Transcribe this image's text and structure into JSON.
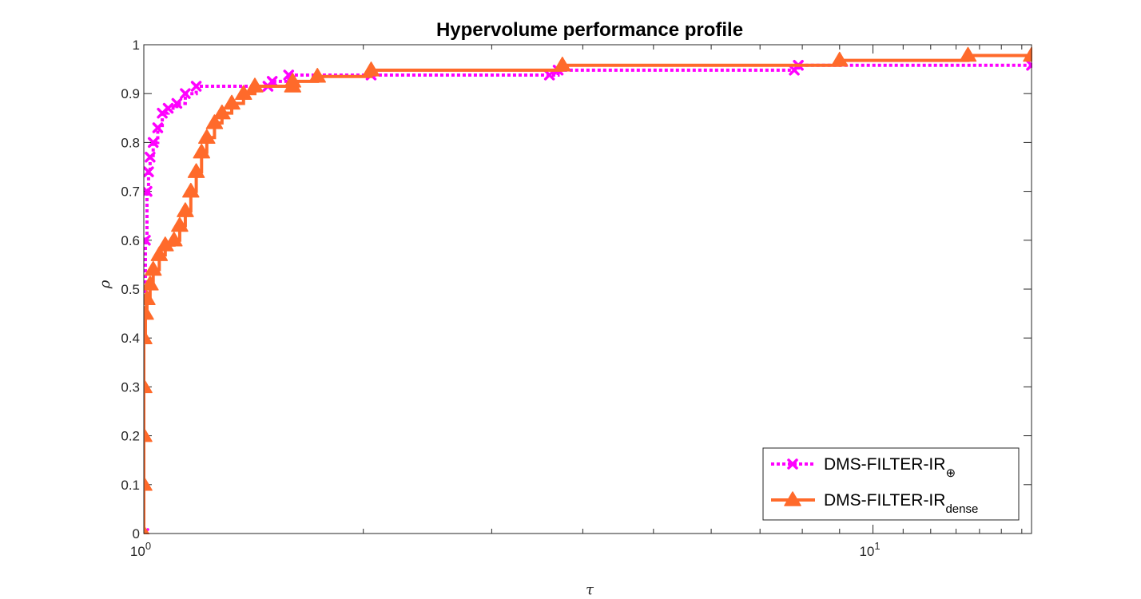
{
  "chart_data": {
    "type": "line",
    "title": "Hypervolume performance profile",
    "xlabel": "τ",
    "ylabel": "ρ",
    "xscale": "log",
    "xlim": [
      1,
      16.5
    ],
    "ylim": [
      0,
      1
    ],
    "xticks": [
      1,
      10
    ],
    "xtick_labels": [
      {
        "base": "10",
        "exp": "0"
      },
      {
        "base": "10",
        "exp": "1"
      }
    ],
    "yticks": [
      0,
      0.1,
      0.2,
      0.3,
      0.4,
      0.5,
      0.6,
      0.7,
      0.8,
      0.9,
      1
    ],
    "ytick_labels": [
      "0",
      "0.1",
      "0.2",
      "0.3",
      "0.4",
      "0.5",
      "0.6",
      "0.7",
      "0.8",
      "0.9",
      "1"
    ],
    "grid": false,
    "legend_position": "bottom-right",
    "series": [
      {
        "name_main": "DMS-FILTER-IR",
        "name_sub": "⊕",
        "color": "#ff00ff",
        "line_style": "dotted",
        "marker": "x",
        "points": [
          [
            1.0,
            0.0
          ],
          [
            1.0,
            0.5
          ],
          [
            1.005,
            0.6
          ],
          [
            1.01,
            0.7
          ],
          [
            1.015,
            0.74
          ],
          [
            1.02,
            0.77
          ],
          [
            1.03,
            0.8
          ],
          [
            1.045,
            0.83
          ],
          [
            1.06,
            0.86
          ],
          [
            1.08,
            0.87
          ],
          [
            1.11,
            0.88
          ],
          [
            1.14,
            0.9
          ],
          [
            1.18,
            0.915
          ],
          [
            1.48,
            0.915
          ],
          [
            1.5,
            0.925
          ],
          [
            1.58,
            0.938
          ],
          [
            2.05,
            0.938
          ],
          [
            3.6,
            0.938
          ],
          [
            3.7,
            0.948
          ],
          [
            7.8,
            0.948
          ],
          [
            7.9,
            0.958
          ],
          [
            16.5,
            0.958
          ]
        ]
      },
      {
        "name_main": "DMS-FILTER-IR",
        "name_sub": "dense",
        "color": "#ff6a2b",
        "line_style": "solid",
        "marker": "triangle",
        "points": [
          [
            1.0,
            0.0
          ],
          [
            1.0,
            0.1
          ],
          [
            1.0,
            0.2
          ],
          [
            1.0,
            0.3
          ],
          [
            1.0,
            0.4
          ],
          [
            1.005,
            0.45
          ],
          [
            1.01,
            0.48
          ],
          [
            1.02,
            0.51
          ],
          [
            1.03,
            0.54
          ],
          [
            1.05,
            0.57
          ],
          [
            1.07,
            0.59
          ],
          [
            1.1,
            0.6
          ],
          [
            1.12,
            0.63
          ],
          [
            1.14,
            0.66
          ],
          [
            1.16,
            0.7
          ],
          [
            1.18,
            0.74
          ],
          [
            1.2,
            0.78
          ],
          [
            1.22,
            0.81
          ],
          [
            1.25,
            0.84
          ],
          [
            1.28,
            0.86
          ],
          [
            1.32,
            0.88
          ],
          [
            1.37,
            0.9
          ],
          [
            1.42,
            0.915
          ],
          [
            1.6,
            0.915
          ],
          [
            1.6,
            0.925
          ],
          [
            1.73,
            0.935
          ],
          [
            2.05,
            0.948
          ],
          [
            3.75,
            0.958
          ],
          [
            9.0,
            0.968
          ],
          [
            13.5,
            0.978
          ],
          [
            16.5,
            0.978
          ]
        ]
      }
    ]
  }
}
